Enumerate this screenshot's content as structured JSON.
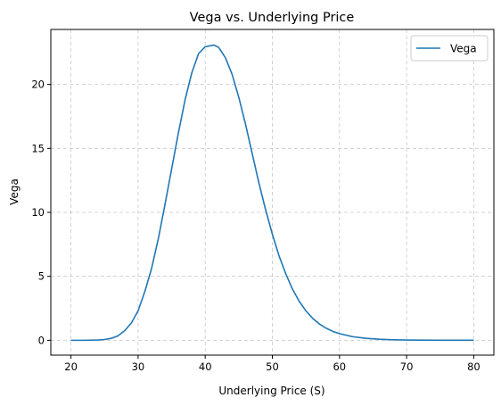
{
  "chart_data": {
    "type": "line",
    "title": "Vega vs. Underlying Price",
    "xlabel": "Underlying Price (S)",
    "ylabel": "Vega",
    "xlim": [
      17,
      83
    ],
    "ylim": [
      -1.16,
      24.3
    ],
    "xticks": [
      20,
      30,
      40,
      50,
      60,
      70,
      80
    ],
    "yticks": [
      0,
      5,
      10,
      15,
      20
    ],
    "grid": true,
    "grid_style": "dashed",
    "legend": "top-right",
    "series": [
      {
        "name": "Vega",
        "color": "#1f77b4",
        "x": [
          20,
          22,
          24,
          25,
          26,
          27,
          28,
          29,
          30,
          31,
          32,
          33,
          34,
          35,
          36,
          37,
          38,
          39,
          40,
          41,
          41.3,
          42,
          43,
          44,
          45,
          46,
          47,
          48,
          49,
          50,
          51,
          52,
          53,
          54,
          55,
          56,
          57,
          58,
          59,
          60,
          62,
          64,
          66,
          68,
          70,
          72,
          75,
          78,
          80
        ],
        "y": [
          0,
          0,
          0.02,
          0.06,
          0.15,
          0.35,
          0.75,
          1.35,
          2.3,
          3.8,
          5.6,
          7.9,
          10.6,
          13.4,
          16.2,
          18.8,
          20.9,
          22.4,
          22.95,
          23.05,
          23.08,
          22.9,
          22.1,
          20.8,
          19.0,
          16.9,
          14.6,
          12.3,
          10.2,
          8.3,
          6.6,
          5.2,
          4.0,
          3.05,
          2.3,
          1.72,
          1.28,
          0.95,
          0.7,
          0.52,
          0.28,
          0.15,
          0.08,
          0.04,
          0.02,
          0.01,
          0.005,
          0.002,
          0.001
        ]
      }
    ]
  }
}
